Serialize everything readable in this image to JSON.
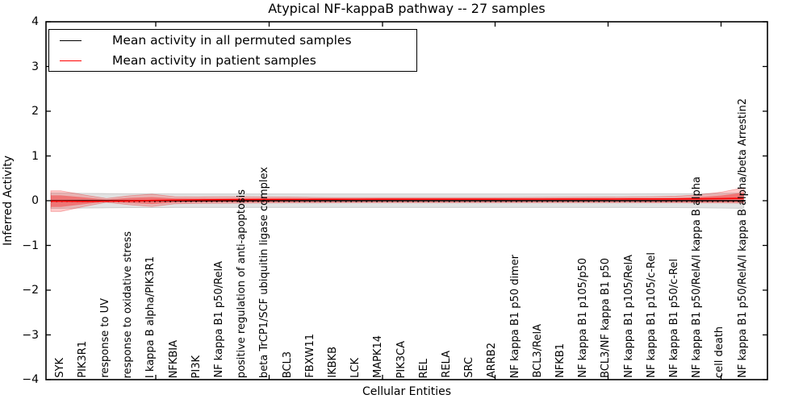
{
  "chart_data": {
    "type": "line",
    "title": "Atypical NF-kappaB pathway -- 27 samples",
    "xlabel": "Cellular Entities",
    "ylabel": "Inferred Activity",
    "ylim": [
      -4,
      4
    ],
    "yticks": [
      4,
      3,
      2,
      1,
      0,
      -1,
      -2,
      -3,
      -4
    ],
    "grid": false,
    "legend_position": "upper left",
    "categories": [
      "SYK",
      "PIK3R1",
      "response to UV",
      "response to oxidative stress",
      "I kappa B alpha/PIK3R1",
      "NFKBIA",
      "PI3K",
      "NF kappa B1 p50/RelA",
      "positive regulation of anti-apoptosis",
      "beta TrCP1/SCF ubiquitin ligase complex",
      "BCL3",
      "FBXW11",
      "IKBKB",
      "LCK",
      "MAPK14",
      "PIK3CA",
      "REL",
      "RELA",
      "SRC",
      "ARRB2",
      "NF kappa B1 p50 dimer",
      "BCL3/RelA",
      "NFKB1",
      "NF kappa B1 p105/p50",
      "BCL3/NF kappa B1 p50",
      "NF kappa B1 p105/RelA",
      "NF kappa B1 p105/c-Rel",
      "NF kappa B1 p50/c-Rel",
      "NF kappa B1 p50/RelA/I kappa B alpha",
      "cell death",
      "NF kappa B1 p50/RelA/I kappa B alpha/beta Arrestin2"
    ],
    "series": [
      {
        "name": "Mean activity in all permuted samples",
        "color": "#000000",
        "values": [
          0,
          0,
          0,
          0,
          0,
          0,
          0,
          0,
          0,
          0,
          0,
          0,
          0,
          0,
          0,
          0,
          0,
          0,
          0,
          0,
          0,
          0,
          0,
          0,
          0,
          0,
          0,
          0,
          0,
          0,
          0
        ]
      },
      {
        "name": "Mean activity in patient samples",
        "color": "#ff0000",
        "values": [
          -0.01,
          -0.015,
          -0.012,
          -0.005,
          0.005,
          0.012,
          0.018,
          0.022,
          0.025,
          0.028,
          0.03,
          0.032,
          0.033,
          0.034,
          0.035,
          0.035,
          0.035,
          0.035,
          0.035,
          0.035,
          0.036,
          0.036,
          0.037,
          0.038,
          0.038,
          0.039,
          0.04,
          0.04,
          0.042,
          0.046,
          0.055
        ]
      }
    ],
    "baseline_dotted": {
      "name": "zero-baseline-dotted",
      "color": "#000000",
      "value": -0.015,
      "style": "dotted"
    },
    "bands": [
      {
        "name": "permuted-samples-range",
        "fill": "rgba(0,0,0,0.115)",
        "edge": "rgba(0,0,0,0.18)",
        "upper": [
          0.17,
          0.165,
          0.16,
          0.155,
          0.155,
          0.15,
          0.15,
          0.15,
          0.15,
          0.15,
          0.15,
          0.15,
          0.15,
          0.15,
          0.15,
          0.15,
          0.15,
          0.15,
          0.15,
          0.15,
          0.15,
          0.15,
          0.15,
          0.15,
          0.15,
          0.15,
          0.155,
          0.155,
          0.16,
          0.165,
          0.17
        ],
        "lower": [
          -0.17,
          -0.165,
          -0.16,
          -0.155,
          -0.155,
          -0.15,
          -0.15,
          -0.15,
          -0.15,
          -0.15,
          -0.15,
          -0.15,
          -0.15,
          -0.15,
          -0.15,
          -0.15,
          -0.15,
          -0.15,
          -0.15,
          -0.15,
          -0.15,
          -0.15,
          -0.15,
          -0.15,
          -0.15,
          -0.15,
          -0.155,
          -0.155,
          -0.16,
          -0.165,
          -0.17
        ]
      },
      {
        "name": "patient-samples-range-outer",
        "fill": "rgba(255,0,0,0.20)",
        "edge": "rgba(220,0,0,0.30)",
        "upper": [
          0.22,
          0.13,
          0.05,
          0.11,
          0.145,
          0.09,
          0.085,
          0.09,
          0.09,
          0.085,
          0.08,
          0.075,
          0.07,
          0.07,
          0.07,
          0.07,
          0.07,
          0.07,
          0.07,
          0.07,
          0.072,
          0.074,
          0.076,
          0.078,
          0.08,
          0.085,
          0.09,
          0.1,
          0.13,
          0.19,
          0.29
        ],
        "lower": [
          -0.24,
          -0.13,
          -0.035,
          -0.09,
          -0.13,
          -0.07,
          -0.06,
          -0.058,
          -0.055,
          -0.052,
          -0.05,
          -0.048,
          -0.046,
          -0.045,
          -0.045,
          -0.045,
          -0.045,
          -0.045,
          -0.045,
          -0.045,
          -0.045,
          -0.045,
          -0.045,
          -0.045,
          -0.045,
          -0.045,
          -0.046,
          -0.047,
          -0.048,
          -0.05,
          -0.055
        ]
      },
      {
        "name": "patient-samples-range-inner",
        "fill": "rgba(255,0,0,0.35)",
        "edge": "rgba(255,0,0,0.0)",
        "upper": [
          0.12,
          0.075,
          0.028,
          0.062,
          0.082,
          0.052,
          0.05,
          0.052,
          0.052,
          0.05,
          0.047,
          0.045,
          0.043,
          0.042,
          0.042,
          0.042,
          0.042,
          0.042,
          0.042,
          0.042,
          0.043,
          0.044,
          0.045,
          0.046,
          0.048,
          0.05,
          0.054,
          0.06,
          0.078,
          0.115,
          0.18
        ],
        "lower": [
          -0.14,
          -0.078,
          -0.02,
          -0.052,
          -0.075,
          -0.042,
          -0.036,
          -0.035,
          -0.033,
          -0.032,
          -0.03,
          -0.029,
          -0.028,
          -0.028,
          -0.028,
          -0.028,
          -0.028,
          -0.028,
          -0.028,
          -0.028,
          -0.028,
          -0.028,
          -0.028,
          -0.028,
          -0.028,
          -0.028,
          -0.029,
          -0.03,
          -0.031,
          -0.033,
          -0.036
        ]
      }
    ]
  }
}
